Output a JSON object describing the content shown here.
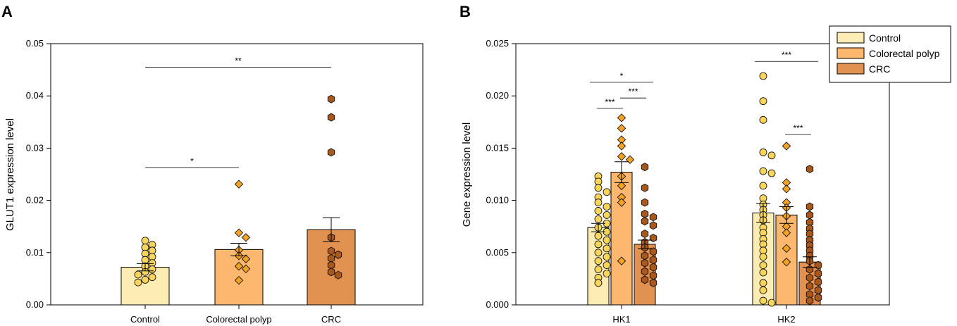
{
  "colors": {
    "control": "#FDEDB5",
    "polyp": "#FDB76F",
    "crc": "#E29250",
    "control_point": "#F9D55B",
    "polyp_point": "#F2A224",
    "crc_point": "#A8581D"
  },
  "chart_data": [
    {
      "panel": "A",
      "type": "bar",
      "categories": [
        "Control",
        "Colorectal polyp",
        "CRC"
      ],
      "values": [
        0.0072,
        0.0106,
        0.0144
      ],
      "errors": [
        0.0007,
        0.0012,
        0.0023
      ],
      "ylabel": "GLUT1 expression level",
      "ylim": [
        0,
        0.05
      ],
      "yticks": [
        "0.00",
        "0.01",
        "0.02",
        "0.03",
        "0.04",
        "0.05"
      ],
      "points": [
        [
          0.0123,
          0.0115,
          0.011,
          0.0104,
          0.0098,
          0.0092,
          0.0086,
          0.008,
          0.0074,
          0.0068,
          0.0063,
          0.0058,
          0.0053,
          0.0048,
          0.0043
        ],
        [
          0.0231,
          0.0138,
          0.0129,
          0.0105,
          0.0094,
          0.0088,
          0.0074,
          0.0069,
          0.0047
        ],
        [
          0.0394,
          0.0359,
          0.0292,
          0.0129,
          0.0103,
          0.0096,
          0.0089,
          0.0076,
          0.0063,
          0.0057
        ]
      ],
      "significance": [
        {
          "from": 0,
          "to": 1,
          "y": 0.0263,
          "label": "*"
        },
        {
          "from": 0,
          "to": 2,
          "y": 0.0455,
          "label": "**"
        }
      ]
    },
    {
      "panel": "B",
      "type": "bar",
      "groups": [
        "HK1",
        "HK2"
      ],
      "series": [
        {
          "name": "Control",
          "values": [
            0.0074,
            0.0088
          ],
          "errors": [
            0.0004,
            0.0009
          ]
        },
        {
          "name": "Colorectal polyp",
          "values": [
            0.0127,
            0.0086
          ],
          "errors": [
            0.001,
            0.0008
          ]
        },
        {
          "name": "CRC",
          "values": [
            0.0058,
            0.0041
          ],
          "errors": [
            0.0004,
            0.0005
          ]
        }
      ],
      "ylabel": "Gene expression level",
      "ylim": [
        0,
        0.025
      ],
      "yticks": [
        "0.000",
        "0.005",
        "0.010",
        "0.015",
        "0.020",
        "0.025"
      ],
      "legend": [
        "Control",
        "Colorectal polyp",
        "CRC"
      ],
      "legend_position": "top-right",
      "points": [
        [
          [
            0.0123,
            0.0118,
            0.0112,
            0.0108,
            0.0103,
            0.0098,
            0.0094,
            0.009,
            0.0086,
            0.0082,
            0.0078,
            0.0074,
            0.007,
            0.0066,
            0.0062,
            0.0058,
            0.0054,
            0.005,
            0.0046,
            0.0042,
            0.0038,
            0.0034,
            0.003,
            0.0026,
            0.0021
          ],
          [
            0.0179,
            0.0169,
            0.0158,
            0.0152,
            0.0142,
            0.0139,
            0.0123,
            0.0114,
            0.0103,
            0.0098,
            0.0042
          ],
          [
            0.0132,
            0.0112,
            0.0098,
            0.0087,
            0.0084,
            0.008,
            0.0076,
            0.0068,
            0.0064,
            0.006,
            0.0055,
            0.0051,
            0.0047,
            0.0043,
            0.004,
            0.0036,
            0.0032,
            0.0028,
            0.0024,
            0.0021
          ]
        ],
        [
          [
            0.0219,
            0.0195,
            0.0177,
            0.0146,
            0.0143,
            0.0128,
            0.0126,
            0.0114,
            0.0102,
            0.0096,
            0.0091,
            0.0086,
            0.0081,
            0.0074,
            0.0069,
            0.0063,
            0.0058,
            0.0052,
            0.0046,
            0.0038,
            0.0031,
            0.0021,
            0.0014,
            0.0004,
            0.0002
          ],
          [
            0.0152,
            0.0117,
            0.0111,
            0.0098,
            0.0093,
            0.0085,
            0.0075,
            0.0069,
            0.0054,
            0.0041
          ],
          [
            0.013,
            0.0094,
            0.0086,
            0.0079,
            0.0073,
            0.0068,
            0.0062,
            0.0057,
            0.0052,
            0.0047,
            0.0042,
            0.0038,
            0.0034,
            0.003,
            0.0026,
            0.0022,
            0.0018,
            0.0014,
            0.001,
            0.0007,
            0.0004
          ]
        ]
      ],
      "significance": [
        {
          "group": 0,
          "from": 0,
          "to": 2,
          "y": 0.0213,
          "label": "*"
        },
        {
          "group": 0,
          "from": 0,
          "to": 1,
          "y": 0.0188,
          "label": "***"
        },
        {
          "group": 0,
          "from": 1,
          "to": 2,
          "y": 0.0198,
          "label": "***"
        },
        {
          "group": 1,
          "from": 0,
          "to": 2,
          "y": 0.0233,
          "label": "***"
        },
        {
          "group": 1,
          "from": 1,
          "to": 2,
          "y": 0.0163,
          "label": "***"
        }
      ]
    }
  ]
}
